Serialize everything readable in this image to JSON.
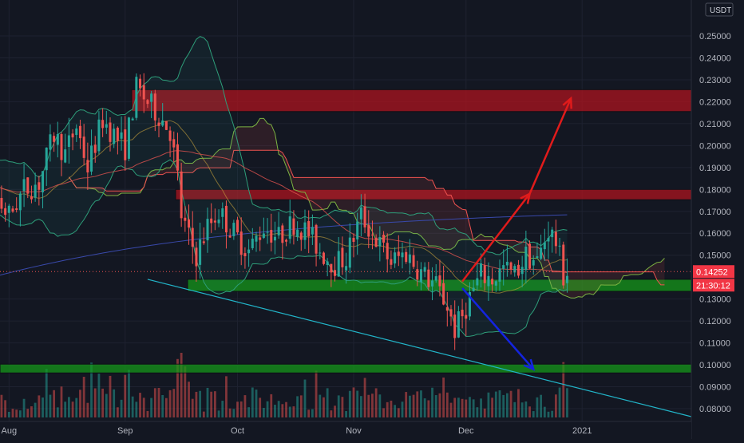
{
  "chart_data": {
    "type": "candlestick",
    "quote_currency": "USDT",
    "current_price": "0.14252",
    "countdown": "21:30:12",
    "y_ticks": [
      "0.25000",
      "0.24000",
      "0.23000",
      "0.22000",
      "0.21000",
      "0.20000",
      "0.19000",
      "0.18000",
      "0.17000",
      "0.16000",
      "0.15000",
      "0.13000",
      "0.12000",
      "0.11000",
      "0.10000",
      "0.09000",
      "0.08000"
    ],
    "x_ticks": [
      {
        "label": "Aug",
        "date": "2020-08-01"
      },
      {
        "label": "Sep",
        "date": "2020-09-01"
      },
      {
        "label": "Oct",
        "date": "2020-10-01"
      },
      {
        "label": "Nov",
        "date": "2020-11-01"
      },
      {
        "label": "Dec",
        "date": "2020-12-01"
      },
      {
        "label": "2021",
        "date": "2021-01-01"
      }
    ],
    "price_range": [
      0.075,
      0.261
    ],
    "date_range": [
      "2020-07-20",
      "2021-01-31"
    ],
    "zones": [
      {
        "type": "resistance",
        "low": 0.2155,
        "high": 0.2255,
        "color": "#b2141e"
      },
      {
        "type": "resistance",
        "low": 0.1753,
        "high": 0.18,
        "color": "#b2141e"
      },
      {
        "type": "support",
        "low": 0.1335,
        "high": 0.139,
        "color": "#159b19"
      },
      {
        "type": "support",
        "low": 0.0963,
        "high": 0.1003,
        "color": "#159b19"
      }
    ],
    "trendline": {
      "from": [
        "2020-09-07",
        0.139
      ],
      "to": [
        "2021-01-31",
        0.076
      ],
      "color": "#22b5c9"
    },
    "projections": [
      {
        "direction": "up",
        "color": "#e01b1b",
        "points": [
          [
            "2020-11-30",
            0.138
          ],
          [
            "2020-12-18",
            0.178
          ],
          [
            "2020-12-29",
            0.2215
          ]
        ]
      },
      {
        "direction": "down",
        "color": "#1424e0",
        "points": [
          [
            "2020-11-30",
            0.135
          ],
          [
            "2020-12-19",
            0.098
          ]
        ]
      }
    ],
    "colors": {
      "up": "#26a69a",
      "down": "#ef5350",
      "price_tag": "#f23645",
      "background": "#131722",
      "axis_text": "#b2b5be"
    }
  }
}
